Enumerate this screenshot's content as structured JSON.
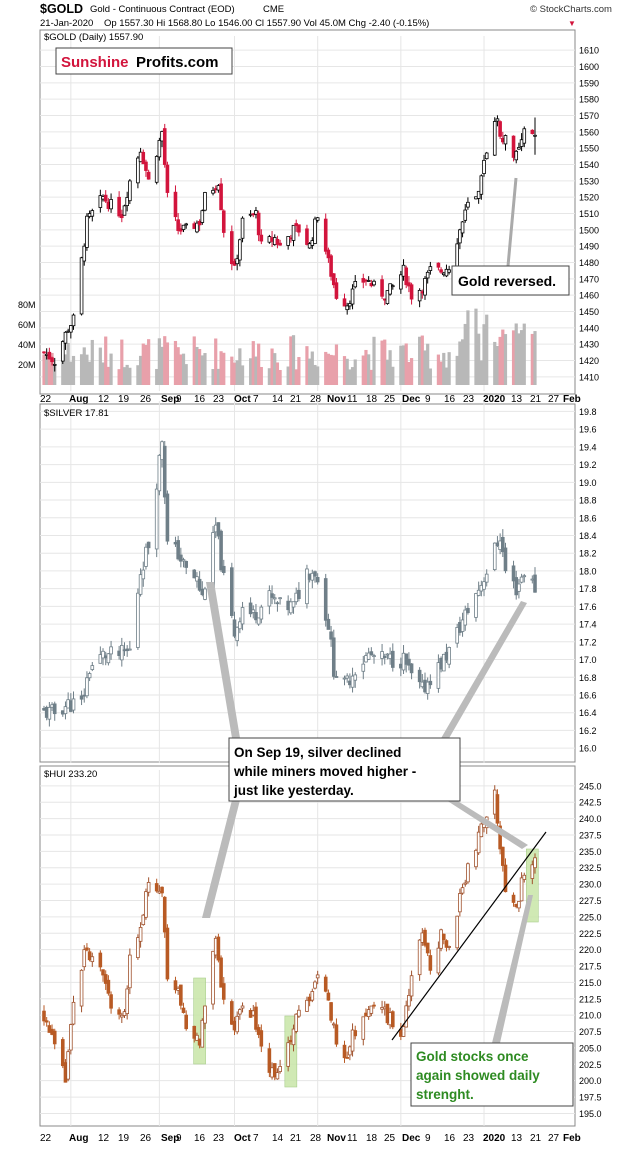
{
  "header": {
    "symbol": "$GOLD",
    "description": "Gold - Continuous Contract (EOD)",
    "exchange": "CME",
    "date": "21-Jan-2020",
    "ohlc": "Op 1557.30  Hi 1568.80  Lo 1546.00  Cl 1557.90  Vol 45.0M  Chg -2.40 (-0.15%)",
    "copyright": "© StockCharts.com",
    "down_glyph": "▼"
  },
  "logo": {
    "part1": "Sunshine",
    "part2": "Profits.com"
  },
  "colors": {
    "up": "#000000",
    "down": "#d2143c",
    "silver": "#6f7f88",
    "hui_up": "#a0522d",
    "hui_down": "#b85a24",
    "vol_up": "#b8b8b8",
    "vol_down": "#e8a0aa",
    "highlight": "#c8e6a8",
    "green_text": "#2e8b22"
  },
  "x_axis": {
    "labels": [
      "22",
      "Aug",
      "12",
      "19",
      "26",
      "Sep",
      "9",
      "16",
      "23",
      "Oct",
      "7",
      "14",
      "21",
      "28",
      "Nov",
      "11",
      "18",
      "25",
      "Dec",
      "9",
      "16",
      "23",
      "2020",
      "13",
      "21",
      "27",
      "Feb"
    ],
    "bold": [
      "Aug",
      "Sep",
      "Oct",
      "Nov",
      "Dec",
      "2020",
      "Feb"
    ]
  },
  "annotations": {
    "gold": "Gold reversed.",
    "silver_line1": "On Sep 19, silver declined",
    "silver_line2": "while miners moved higher -",
    "silver_line3": "just like yesterday.",
    "hui_line1": "Gold stocks once",
    "hui_line2": "again showed daily",
    "hui_line3": "strenght."
  },
  "chart_data": [
    {
      "type": "candlestick",
      "title": "$GOLD (Daily) 1557.90",
      "ylim": [
        1405,
        1615
      ],
      "y_ticks": [
        1410,
        1420,
        1430,
        1440,
        1450,
        1460,
        1470,
        1480,
        1490,
        1500,
        1510,
        1520,
        1530,
        1540,
        1550,
        1560,
        1570,
        1580,
        1590,
        1600,
        1610
      ],
      "volume_ticks": [
        "20M",
        "40M",
        "60M",
        "80M"
      ],
      "volume_max": 100,
      "close_path": [
        {
          "date": "2019-07-22",
          "close": 1425
        },
        {
          "date": "2019-07-26",
          "close": 1420
        },
        {
          "date": "2019-07-31",
          "close": 1440
        },
        {
          "date": "2019-08-02",
          "close": 1445
        },
        {
          "date": "2019-08-07",
          "close": 1505
        },
        {
          "date": "2019-08-09",
          "close": 1510
        },
        {
          "date": "2019-08-13",
          "close": 1520
        },
        {
          "date": "2019-08-16",
          "close": 1515
        },
        {
          "date": "2019-08-20",
          "close": 1510
        },
        {
          "date": "2019-08-23",
          "close": 1530
        },
        {
          "date": "2019-08-27",
          "close": 1550
        },
        {
          "date": "2019-08-30",
          "close": 1530
        },
        {
          "date": "2019-09-04",
          "close": 1560
        },
        {
          "date": "2019-09-06",
          "close": 1520
        },
        {
          "date": "2019-09-10",
          "close": 1500
        },
        {
          "date": "2019-09-13",
          "close": 1500
        },
        {
          "date": "2019-09-18",
          "close": 1505
        },
        {
          "date": "2019-09-20",
          "close": 1520
        },
        {
          "date": "2019-09-25",
          "close": 1530
        },
        {
          "date": "2019-09-27",
          "close": 1500
        },
        {
          "date": "2019-10-01",
          "close": 1475
        },
        {
          "date": "2019-10-04",
          "close": 1505
        },
        {
          "date": "2019-10-09",
          "close": 1510
        },
        {
          "date": "2019-10-11",
          "close": 1490
        },
        {
          "date": "2019-10-16",
          "close": 1495
        },
        {
          "date": "2019-10-18",
          "close": 1490
        },
        {
          "date": "2019-10-23",
          "close": 1500
        },
        {
          "date": "2019-10-25",
          "close": 1500
        },
        {
          "date": "2019-10-29",
          "close": 1490
        },
        {
          "date": "2019-11-01",
          "close": 1510
        },
        {
          "date": "2019-11-05",
          "close": 1480
        },
        {
          "date": "2019-11-08",
          "close": 1460
        },
        {
          "date": "2019-11-12",
          "close": 1455
        },
        {
          "date": "2019-11-15",
          "close": 1465
        },
        {
          "date": "2019-11-19",
          "close": 1470
        },
        {
          "date": "2019-11-22",
          "close": 1465
        },
        {
          "date": "2019-11-26",
          "close": 1460
        },
        {
          "date": "2019-11-29",
          "close": 1465
        },
        {
          "date": "2019-12-03",
          "close": 1475
        },
        {
          "date": "2019-12-06",
          "close": 1460
        },
        {
          "date": "2019-12-10",
          "close": 1465
        },
        {
          "date": "2019-12-13",
          "close": 1475
        },
        {
          "date": "2019-12-17",
          "close": 1475
        },
        {
          "date": "2019-12-20",
          "close": 1478
        },
        {
          "date": "2019-12-24",
          "close": 1500
        },
        {
          "date": "2019-12-27",
          "close": 1515
        },
        {
          "date": "2019-12-31",
          "close": 1520
        },
        {
          "date": "2020-01-03",
          "close": 1550
        },
        {
          "date": "2020-01-06",
          "close": 1570
        },
        {
          "date": "2020-01-08",
          "close": 1560
        },
        {
          "date": "2020-01-10",
          "close": 1555
        },
        {
          "date": "2020-01-14",
          "close": 1545
        },
        {
          "date": "2020-01-16",
          "close": 1552
        },
        {
          "date": "2020-01-17",
          "close": 1560
        },
        {
          "date": "2020-01-21",
          "close": 1557.9
        }
      ],
      "last_candle": {
        "date": "2020-01-21",
        "open": 1557.3,
        "high": 1568.8,
        "low": 1546.0,
        "close": 1557.9,
        "volume": 45.0
      }
    },
    {
      "type": "candlestick",
      "title": "$SILVER 17.81",
      "ylim": [
        15.9,
        19.85
      ],
      "y_ticks": [
        16.0,
        16.2,
        16.4,
        16.6,
        16.8,
        17.0,
        17.2,
        17.4,
        17.6,
        17.8,
        18.0,
        18.2,
        18.4,
        18.6,
        18.8,
        19.0,
        19.2,
        19.4,
        19.6,
        19.8
      ],
      "close_path": [
        {
          "date": "2019-07-22",
          "close": 16.4
        },
        {
          "date": "2019-07-26",
          "close": 16.4
        },
        {
          "date": "2019-07-31",
          "close": 16.5
        },
        {
          "date": "2019-08-05",
          "close": 16.5
        },
        {
          "date": "2019-08-08",
          "close": 16.9
        },
        {
          "date": "2019-08-13",
          "close": 17.05
        },
        {
          "date": "2019-08-19",
          "close": 17.05
        },
        {
          "date": "2019-08-23",
          "close": 17.1
        },
        {
          "date": "2019-08-27",
          "close": 18.0
        },
        {
          "date": "2019-08-30",
          "close": 18.3
        },
        {
          "date": "2019-09-04",
          "close": 19.5
        },
        {
          "date": "2019-09-06",
          "close": 18.3
        },
        {
          "date": "2019-09-10",
          "close": 18.2
        },
        {
          "date": "2019-09-13",
          "close": 18.0
        },
        {
          "date": "2019-09-17",
          "close": 17.9
        },
        {
          "date": "2019-09-19",
          "close": 17.7
        },
        {
          "date": "2019-09-24",
          "close": 18.5
        },
        {
          "date": "2019-09-27",
          "close": 17.9
        },
        {
          "date": "2019-10-01",
          "close": 17.3
        },
        {
          "date": "2019-10-04",
          "close": 17.6
        },
        {
          "date": "2019-10-08",
          "close": 17.5
        },
        {
          "date": "2019-10-14",
          "close": 17.7
        },
        {
          "date": "2019-10-18",
          "close": 17.6
        },
        {
          "date": "2019-10-23",
          "close": 17.6
        },
        {
          "date": "2019-10-28",
          "close": 18.0
        },
        {
          "date": "2019-10-31",
          "close": 18.0
        },
        {
          "date": "2019-11-05",
          "close": 17.4
        },
        {
          "date": "2019-11-07",
          "close": 16.9
        },
        {
          "date": "2019-11-11",
          "close": 16.7
        },
        {
          "date": "2019-11-15",
          "close": 16.9
        },
        {
          "date": "2019-11-20",
          "close": 17.05
        },
        {
          "date": "2019-11-25",
          "close": 17.0
        },
        {
          "date": "2019-11-29",
          "close": 17.0
        },
        {
          "date": "2019-12-03",
          "close": 17.0
        },
        {
          "date": "2019-12-06",
          "close": 16.8
        },
        {
          "date": "2019-12-10",
          "close": 16.65
        },
        {
          "date": "2019-12-13",
          "close": 16.8
        },
        {
          "date": "2019-12-17",
          "close": 16.95
        },
        {
          "date": "2019-12-20",
          "close": 17.1
        },
        {
          "date": "2019-12-26",
          "close": 17.5
        },
        {
          "date": "2019-12-31",
          "close": 17.8
        },
        {
          "date": "2020-01-03",
          "close": 18.0
        },
        {
          "date": "2020-01-08",
          "close": 18.4
        },
        {
          "date": "2020-01-10",
          "close": 18.0
        },
        {
          "date": "2020-01-14",
          "close": 17.8
        },
        {
          "date": "2020-01-17",
          "close": 18.0
        },
        {
          "date": "2020-01-21",
          "close": 17.81
        }
      ]
    },
    {
      "type": "candlestick",
      "title": "$HUI 233.20",
      "ylim": [
        194,
        246.5
      ],
      "y_ticks": [
        195.0,
        197.5,
        200.0,
        202.5,
        205.0,
        207.5,
        210.0,
        212.5,
        215.0,
        217.5,
        220.0,
        222.5,
        225.0,
        227.5,
        230.0,
        232.5,
        235.0,
        237.5,
        240.0,
        242.5,
        245.0
      ],
      "close_path": [
        {
          "date": "2019-07-22",
          "close": 210
        },
        {
          "date": "2019-07-26",
          "close": 205
        },
        {
          "date": "2019-07-30",
          "close": 200
        },
        {
          "date": "2019-08-02",
          "close": 212
        },
        {
          "date": "2019-08-06",
          "close": 220
        },
        {
          "date": "2019-08-09",
          "close": 218
        },
        {
          "date": "2019-08-13",
          "close": 216
        },
        {
          "date": "2019-08-16",
          "close": 212
        },
        {
          "date": "2019-08-21",
          "close": 210
        },
        {
          "date": "2019-08-23",
          "close": 218
        },
        {
          "date": "2019-08-28",
          "close": 226
        },
        {
          "date": "2019-08-30",
          "close": 230
        },
        {
          "date": "2019-09-04",
          "close": 228
        },
        {
          "date": "2019-09-06",
          "close": 216
        },
        {
          "date": "2019-09-10",
          "close": 214
        },
        {
          "date": "2019-09-13",
          "close": 208
        },
        {
          "date": "2019-09-18",
          "close": 206
        },
        {
          "date": "2019-09-19",
          "close": 210
        },
        {
          "date": "2019-09-24",
          "close": 222
        },
        {
          "date": "2019-09-27",
          "close": 212
        },
        {
          "date": "2019-10-01",
          "close": 208
        },
        {
          "date": "2019-10-04",
          "close": 212
        },
        {
          "date": "2019-10-08",
          "close": 210
        },
        {
          "date": "2019-10-11",
          "close": 205
        },
        {
          "date": "2019-10-16",
          "close": 200
        },
        {
          "date": "2019-10-21",
          "close": 205
        },
        {
          "date": "2019-10-24",
          "close": 210
        },
        {
          "date": "2019-10-29",
          "close": 212
        },
        {
          "date": "2019-11-01",
          "close": 216
        },
        {
          "date": "2019-11-05",
          "close": 212
        },
        {
          "date": "2019-11-08",
          "close": 206
        },
        {
          "date": "2019-11-12",
          "close": 204
        },
        {
          "date": "2019-11-15",
          "close": 208
        },
        {
          "date": "2019-11-19",
          "close": 210
        },
        {
          "date": "2019-11-22",
          "close": 212
        },
        {
          "date": "2019-11-27",
          "close": 210
        },
        {
          "date": "2019-12-02",
          "close": 207
        },
        {
          "date": "2019-12-05",
          "close": 214
        },
        {
          "date": "2019-12-10",
          "close": 222
        },
        {
          "date": "2019-12-13",
          "close": 218
        },
        {
          "date": "2019-12-17",
          "close": 222
        },
        {
          "date": "2019-12-20",
          "close": 220
        },
        {
          "date": "2019-12-24",
          "close": 228
        },
        {
          "date": "2019-12-27",
          "close": 232
        },
        {
          "date": "2020-01-02",
          "close": 240
        },
        {
          "date": "2020-01-06",
          "close": 244
        },
        {
          "date": "2020-01-08",
          "close": 236
        },
        {
          "date": "2020-01-10",
          "close": 230
        },
        {
          "date": "2020-01-14",
          "close": 226
        },
        {
          "date": "2020-01-16",
          "close": 230
        },
        {
          "date": "2020-01-17",
          "close": 232
        },
        {
          "date": "2020-01-21",
          "close": 233.2
        }
      ]
    }
  ]
}
